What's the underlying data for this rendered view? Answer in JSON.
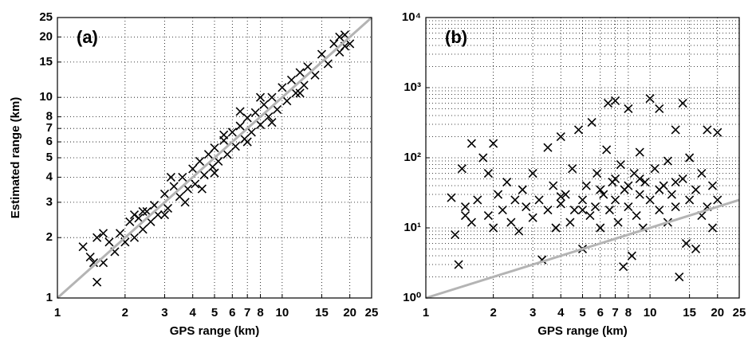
{
  "chart_data": [
    {
      "type": "scatter",
      "annotation": "(a)",
      "xlabel": "GPS range (km)",
      "ylabel": "Estimated range (km)",
      "log_x": true,
      "log_y": true,
      "grid": true,
      "color": "#000000",
      "xlim": [
        1,
        25
      ],
      "ylim": [
        1,
        25
      ],
      "xticks": [
        1,
        2,
        3,
        4,
        5,
        6,
        7,
        8,
        10,
        15,
        20,
        25
      ],
      "yticks": [
        1,
        2,
        3,
        4,
        5,
        6,
        7,
        8,
        10,
        15,
        20,
        25
      ],
      "reference_line": {
        "x": [
          1,
          25
        ],
        "y": [
          1,
          25
        ],
        "color": "#b4b4b4"
      },
      "x": [
        1.3,
        1.4,
        1.5,
        1.6,
        1.7,
        1.8,
        1.9,
        2.0,
        2.1,
        2.2,
        2.3,
        2.4,
        2.5,
        2.6,
        2.7,
        2.8,
        3.0,
        3.1,
        3.3,
        3.5,
        3.6,
        3.8,
        4.0,
        4.1,
        4.3,
        4.5,
        4.7,
        4.9,
        5.0,
        5.2,
        5.5,
        5.7,
        6.0,
        6.2,
        6.5,
        6.8,
        7.0,
        7.3,
        7.6,
        8.0,
        8.3,
        8.7,
        9.0,
        9.5,
        10,
        10.5,
        11,
        11.5,
        12,
        12.5,
        13,
        14,
        15,
        16,
        17,
        18,
        19,
        20,
        1.5,
        1.45,
        2.4,
        3.7,
        4.4,
        3.2,
        5.5,
        6.5,
        8,
        9,
        12,
        7,
        5,
        3,
        2.2,
        1.6,
        18,
        19
      ],
      "values": [
        1.8,
        1.6,
        2.0,
        1.5,
        1.9,
        1.7,
        2.1,
        1.9,
        2.4,
        2.0,
        2.5,
        2.2,
        2.7,
        2.4,
        2.9,
        2.6,
        3.3,
        2.8,
        3.6,
        3.2,
        4.0,
        3.5,
        4.4,
        3.7,
        4.8,
        4.1,
        5.2,
        4.5,
        5.6,
        4.8,
        6.1,
        5.2,
        6.7,
        5.7,
        7.2,
        6.2,
        7.9,
        6.7,
        8.4,
        7.3,
        9.2,
        8.0,
        10.0,
        8.7,
        11.2,
        9.6,
        12.2,
        10.5,
        13.3,
        11.5,
        14.2,
        12.9,
        16.4,
        14.7,
        18.5,
        16.8,
        20.5,
        18.5,
        1.2,
        1.5,
        2.7,
        3.0,
        3.5,
        4.0,
        6.5,
        8.5,
        10,
        7.5,
        10.5,
        6,
        4.2,
        2.6,
        2.6,
        2.1,
        20,
        18
      ]
    },
    {
      "type": "scatter",
      "annotation": "(b)",
      "xlabel": "GPS range (km)",
      "log_x": true,
      "log_y": true,
      "grid": true,
      "color": "#000000",
      "xlim": [
        1,
        25
      ],
      "ylim": [
        1,
        10000
      ],
      "xticks": [
        1,
        2,
        3,
        4,
        5,
        6,
        7,
        8,
        10,
        15,
        20,
        25
      ],
      "yticks": [
        {
          "value": 1,
          "label": "10⁰"
        },
        {
          "value": 10,
          "label": "10¹"
        },
        {
          "value": 100,
          "label": "10²"
        },
        {
          "value": 1000,
          "label": "10³"
        },
        {
          "value": 10000,
          "label": "10⁴"
        }
      ],
      "yminorticks": [
        2,
        3,
        4,
        5,
        6,
        7,
        8,
        9,
        20,
        30,
        40,
        50,
        60,
        70,
        80,
        90,
        200,
        300,
        400,
        500,
        600,
        700,
        800,
        900,
        2000,
        3000,
        4000,
        5000,
        6000,
        7000,
        8000,
        9000
      ],
      "reference_line": {
        "x": [
          1,
          25
        ],
        "y": [
          1,
          25
        ],
        "color": "#b4b4b4"
      },
      "x": [
        1.3,
        1.35,
        1.4,
        1.45,
        1.5,
        1.5,
        1.6,
        1.6,
        1.7,
        1.8,
        1.9,
        1.9,
        2.0,
        2.0,
        2.1,
        2.2,
        2.3,
        2.4,
        2.5,
        2.6,
        2.7,
        2.8,
        3.0,
        3.0,
        3.2,
        3.3,
        3.5,
        3.5,
        3.7,
        3.8,
        4.0,
        4.0,
        4.2,
        4.4,
        4.5,
        4.6,
        4.8,
        5.0,
        5.0,
        5.2,
        5.4,
        5.5,
        5.7,
        5.8,
        6.0,
        6.2,
        6.4,
        6.5,
        6.6,
        6.8,
        7.0,
        7.0,
        7.2,
        7.4,
        7.6,
        7.7,
        8.0,
        8.0,
        8.3,
        8.5,
        8.7,
        9.0,
        9.0,
        9.3,
        9.5,
        10,
        10,
        10.5,
        11,
        11,
        11.5,
        12,
        12,
        12.5,
        13,
        13,
        13.5,
        14,
        14,
        14.5,
        15,
        15,
        16,
        16,
        17,
        17,
        18,
        18,
        19,
        19,
        20,
        20,
        6,
        5,
        4,
        9,
        11,
        13,
        8,
        7
      ],
      "values": [
        27,
        8,
        3,
        70,
        20,
        15,
        160,
        12,
        25,
        100,
        60,
        15,
        160,
        10,
        30,
        18,
        45,
        12,
        25,
        9,
        35,
        20,
        60,
        14,
        25,
        3.5,
        140,
        18,
        40,
        10,
        200,
        22,
        30,
        12,
        70,
        18,
        250,
        5,
        25,
        40,
        15,
        320,
        20,
        60,
        10,
        30,
        130,
        600,
        18,
        45,
        650,
        25,
        12,
        80,
        2.8,
        35,
        500,
        20,
        4,
        60,
        15,
        120,
        30,
        10,
        45,
        700,
        25,
        70,
        500,
        18,
        40,
        90,
        12,
        30,
        250,
        20,
        2,
        600,
        50,
        6,
        25,
        100,
        5,
        35,
        15,
        60,
        250,
        20,
        10,
        40,
        230,
        25,
        35,
        18,
        28,
        50,
        35,
        45,
        40,
        50
      ]
    }
  ]
}
